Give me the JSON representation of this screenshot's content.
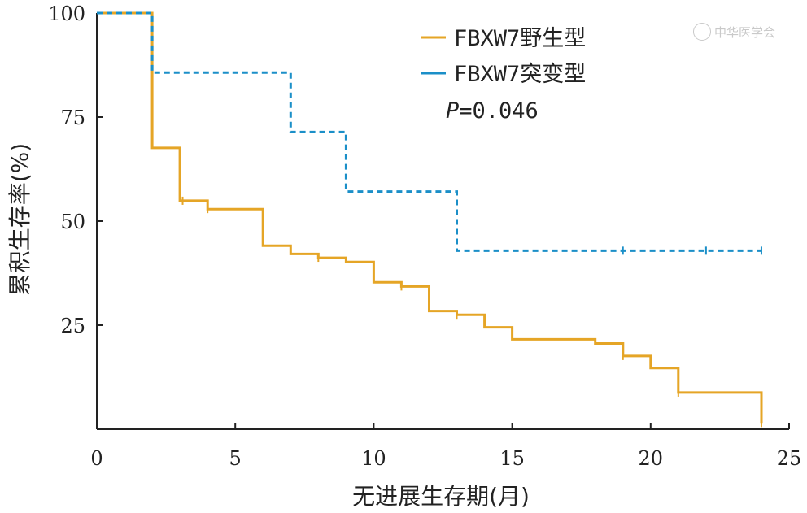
{
  "watermark": "中华医学会",
  "colors": {
    "wild": "#E5A526",
    "mutant": "#1B8FC8",
    "axis": "#222222"
  },
  "chart_data": {
    "type": "line",
    "subtype": "kaplan-meier step",
    "title": "",
    "xlabel": "无进展生存期(月)",
    "ylabel": "累积生存率(%)",
    "xlim": [
      0,
      25
    ],
    "ylim": [
      0,
      100
    ],
    "xticks": [
      0,
      5,
      10,
      15,
      20,
      25
    ],
    "yticks": [
      25,
      50,
      75,
      100
    ],
    "grid": false,
    "legend_position": "top-right",
    "annotation": {
      "prefix": "P",
      "text": "=0.046"
    },
    "series": [
      {
        "name": "FBXW7野生型",
        "color": "#E5A526",
        "line_style": "solid",
        "x": [
          0,
          2,
          2,
          3,
          3,
          4,
          4,
          6,
          6,
          7,
          7,
          8,
          8,
          9,
          9,
          10,
          10,
          11,
          11,
          12,
          12,
          13,
          13,
          14,
          14,
          15,
          15,
          18,
          18,
          19,
          19,
          20,
          20,
          21,
          21,
          24,
          24
        ],
        "y": [
          100,
          100,
          67.6,
          67.6,
          54.9,
          54.9,
          52.9,
          52.9,
          44.1,
          44.1,
          42.1,
          42.1,
          41.2,
          41.2,
          40.2,
          40.2,
          35.3,
          35.3,
          34.3,
          34.3,
          28.4,
          28.4,
          27.5,
          27.5,
          24.5,
          24.5,
          21.6,
          21.6,
          20.6,
          20.6,
          17.6,
          17.6,
          14.7,
          14.7,
          8.8,
          8.8,
          1.5
        ],
        "censored": [
          [
            3.1,
            54.9
          ],
          [
            4.0,
            52.9
          ],
          [
            8.0,
            41.2
          ],
          [
            11.0,
            34.3
          ],
          [
            13.0,
            27.5
          ],
          [
            19.0,
            17.6
          ],
          [
            21.0,
            8.8
          ],
          [
            24.0,
            1.5
          ]
        ]
      },
      {
        "name": "FBXW7突变型",
        "color": "#1B8FC8",
        "line_style": "dashed",
        "x": [
          0,
          2,
          2,
          7,
          7,
          9,
          9,
          13,
          13,
          24
        ],
        "y": [
          100,
          100,
          85.7,
          85.7,
          71.4,
          71.4,
          57.1,
          57.1,
          42.9,
          42.9
        ],
        "censored": [
          [
            19.0,
            42.9
          ],
          [
            22.0,
            42.9
          ],
          [
            24.0,
            42.9
          ]
        ]
      }
    ]
  }
}
